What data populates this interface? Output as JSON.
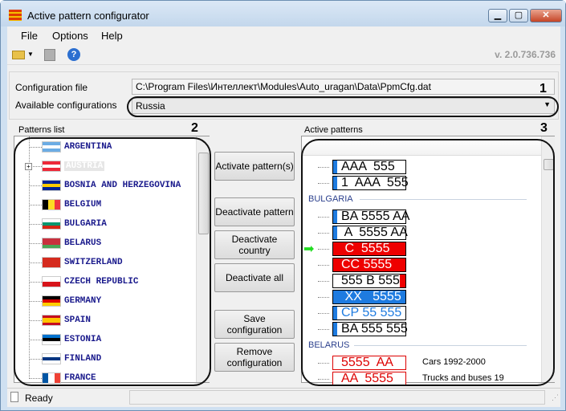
{
  "window": {
    "title": "Active pattern configurator",
    "controls": [
      "minimize",
      "maximize",
      "close"
    ]
  },
  "menu": [
    "File",
    "Options",
    "Help"
  ],
  "toolbar": {
    "icons": [
      "open-folder-icon",
      "dropdown-arrow-icon",
      "save-disk-icon",
      "help-icon"
    ],
    "version": "v. 2.0.736.736"
  },
  "config": {
    "file_label": "Configuration file",
    "file_value": "C:\\Program Files\\Интеллект\\Modules\\Auto_uragan\\Data\\PpmCfg.dat",
    "available_label": "Available configurations",
    "available_value": "Russia"
  },
  "annotations": [
    "1",
    "2",
    "3"
  ],
  "patterns": {
    "label": "Patterns list",
    "countries": [
      {
        "name": "ARGENTINA",
        "flag": [
          "#6cace4",
          "#ffffff",
          "#6cace4"
        ]
      },
      {
        "name": "AUSTRIA",
        "flag": [
          "#ed2939",
          "#ffffff",
          "#ed2939"
        ],
        "selected": true,
        "expandable": true
      },
      {
        "name": "BOSNIA AND HERZEGOVINA",
        "flag": [
          "#002395",
          "#fecb00",
          "#002395"
        ]
      },
      {
        "name": "BELGIUM",
        "flag": [
          "#000000",
          "#fdda24",
          "#ef3340"
        ],
        "vertical": true
      },
      {
        "name": "BULGARIA",
        "flag": [
          "#ffffff",
          "#00966e",
          "#d62612"
        ]
      },
      {
        "name": "BELARUS",
        "flag": [
          "#c8313e",
          "#c8313e",
          "#4aa657"
        ]
      },
      {
        "name": "SWITZERLAND",
        "flag": [
          "#d52b1e",
          "#d52b1e",
          "#d52b1e"
        ]
      },
      {
        "name": "CZECH REPUBLIC",
        "flag": [
          "#ffffff",
          "#d7141a"
        ]
      },
      {
        "name": "GERMANY",
        "flag": [
          "#000000",
          "#dd0000",
          "#ffce00"
        ]
      },
      {
        "name": "SPAIN",
        "flag": [
          "#c60b1e",
          "#ffc400",
          "#ffc400",
          "#c60b1e"
        ]
      },
      {
        "name": "ESTONIA",
        "flag": [
          "#0072ce",
          "#000000",
          "#ffffff"
        ]
      },
      {
        "name": "FINLAND",
        "flag": [
          "#ffffff",
          "#003580",
          "#ffffff"
        ]
      },
      {
        "name": "FRANCE",
        "flag": [
          "#0055a4",
          "#ffffff",
          "#ef4135"
        ],
        "vertical": true
      }
    ]
  },
  "buttons": {
    "activate": "Activate pattern(s)",
    "deactivate_pattern": "Deactivate pattern",
    "deactivate_country": "Deactivate country",
    "deactivate_all": "Deactivate all",
    "save": "Save configuration",
    "remove": "Remove configuration"
  },
  "active": {
    "label": "Active patterns",
    "rows": [
      {
        "plate": "AAA  555",
        "bg": "#ffffff",
        "fg": "#000000",
        "strip": true
      },
      {
        "plate": "1  AAA  555",
        "bg": "#ffffff",
        "fg": "#000000",
        "strip": true
      },
      {
        "section": "BULGARIA"
      },
      {
        "plate": "BA 5555 AA",
        "bg": "#ffffff",
        "fg": "#000000",
        "strip": true
      },
      {
        "plate": " A  5555 AA",
        "bg": "#ffffff",
        "fg": "#000000",
        "strip": true
      },
      {
        "plate": " C  5555",
        "bg": "#ee0000",
        "fg": "#ffffff",
        "current": true
      },
      {
        "plate": "CC 5555",
        "bg": "#ee0000",
        "fg": "#ffffff"
      },
      {
        "plate": "555 B 555",
        "bg": "#ffffff",
        "fg": "#000000",
        "redend": true
      },
      {
        "plate": " XX   5555",
        "bg": "#1e7be0",
        "fg": "#ffffff"
      },
      {
        "plate": "CP 55 555",
        "bg": "#ffffff",
        "fg": "#1e7be0",
        "strip": true
      },
      {
        "plate": "BA 555 555",
        "bg": "#ffffff",
        "fg": "#000000",
        "strip": true
      },
      {
        "section": "BELARUS"
      },
      {
        "plate": "5555  AA",
        "bg": "#ffffff",
        "fg": "#dd0000",
        "border": "#dd0000",
        "desc": "Cars 1992-2000"
      },
      {
        "plate": "AA  5555",
        "bg": "#ffffff",
        "fg": "#dd0000",
        "border": "#dd0000",
        "desc": "Trucks and buses 19"
      }
    ]
  },
  "status": {
    "text": "Ready"
  }
}
